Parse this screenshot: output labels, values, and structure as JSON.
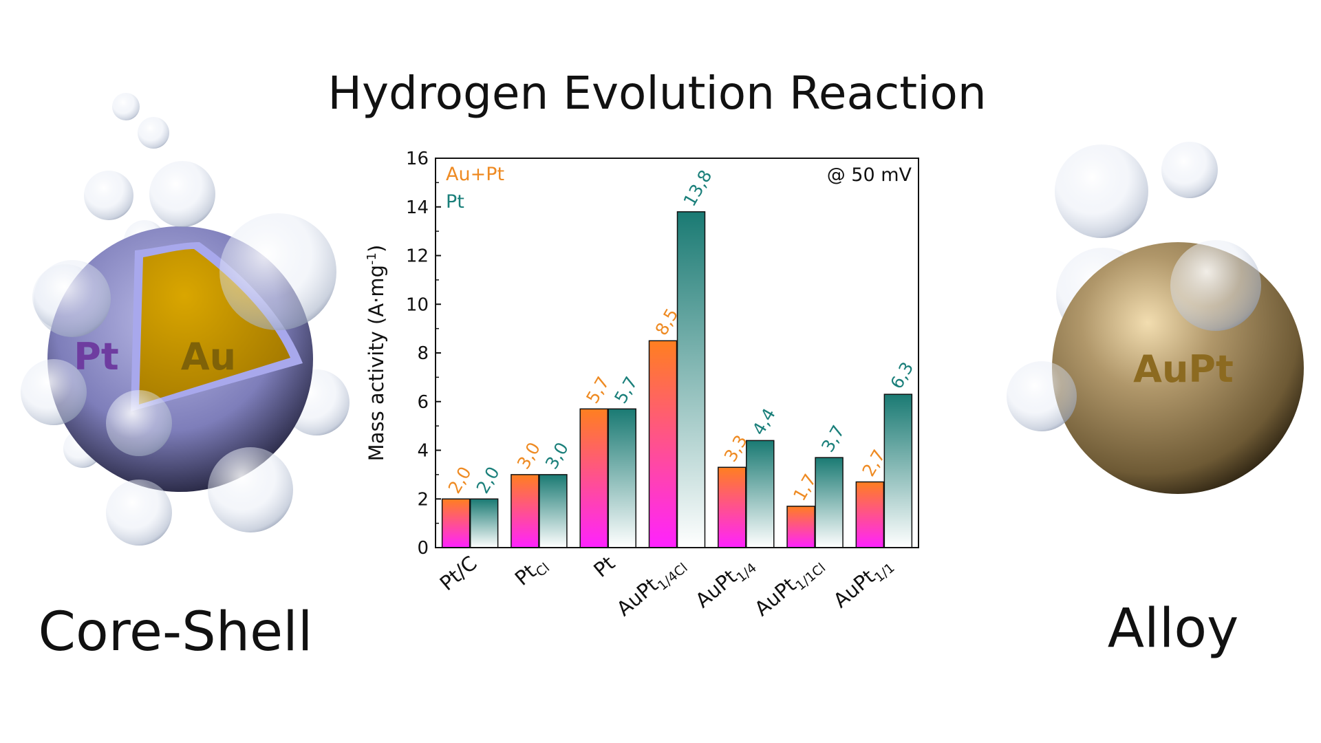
{
  "page": {
    "title": "Hydrogen Evolution Reaction",
    "left_caption": "Core-Shell",
    "right_caption": "Alloy",
    "core_shell": {
      "shell_label": "Pt",
      "core_label": "Au"
    },
    "alloy": {
      "label": "AuPt"
    }
  },
  "colors": {
    "au_pt_label": "#EE8A22",
    "pt_label": "#1A7F7A",
    "au_pt_bar_top": "#FF7F20",
    "au_pt_bar_bottom": "#FF22FF",
    "pt_bar_top": "#1A7A73",
    "pt_bar_bottom": "#FFFFFF",
    "shell": "#8C8CC6",
    "core": "#C79400",
    "alloy": "#A48B5C"
  },
  "chart_data": {
    "type": "bar",
    "categories": [
      {
        "base": "Pt/C",
        "sub": ""
      },
      {
        "base": "Pt",
        "sub": "Cl"
      },
      {
        "base": "Pt",
        "sub": ""
      },
      {
        "base": "AuPt",
        "sub": "1/4Cl"
      },
      {
        "base": "AuPt",
        "sub": "1/4"
      },
      {
        "base": "AuPt",
        "sub": "1/1Cl"
      },
      {
        "base": "AuPt",
        "sub": "1/1"
      }
    ],
    "series": [
      {
        "name": "Au+Pt",
        "values": [
          2.0,
          3.0,
          5.7,
          8.5,
          3.3,
          1.7,
          2.7
        ],
        "labels": [
          "2,0",
          "3,0",
          "5,7",
          "8,5",
          "3,3",
          "1,7",
          "2,7"
        ]
      },
      {
        "name": "Pt",
        "values": [
          2.0,
          3.0,
          5.7,
          13.8,
          4.4,
          3.7,
          6.3
        ],
        "labels": [
          "2,0",
          "3,0",
          "5,7",
          "13,8",
          "4,4",
          "3,7",
          "6,3"
        ]
      }
    ],
    "ylabel_main": "Mass activity (A·mg",
    "ylabel_sup": "-1",
    "ylabel_close": ")",
    "ylim": [
      0,
      16
    ],
    "yticks": [
      0,
      2,
      4,
      6,
      8,
      10,
      12,
      14,
      16
    ],
    "annotation": "@ 50 mV",
    "legend_position": "top-left"
  }
}
